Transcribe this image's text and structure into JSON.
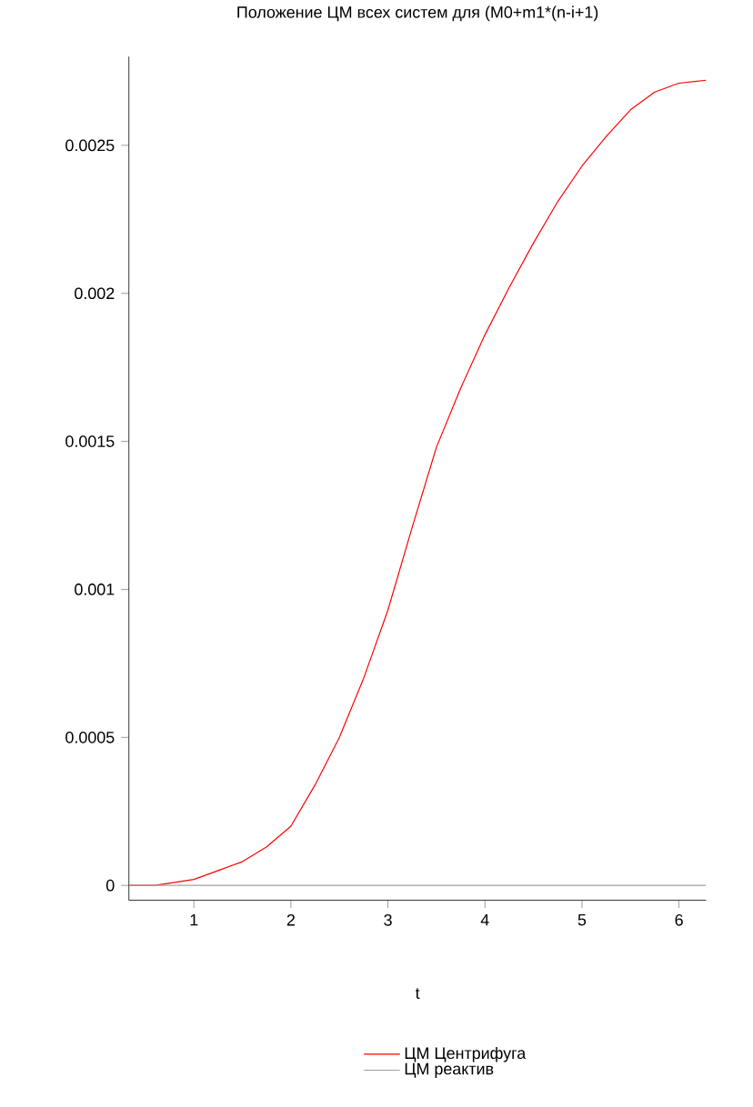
{
  "chart_data": {
    "type": "line",
    "title": "Положение ЦМ всех систем для (M0+m1*(n-i+1)",
    "xlabel": "t",
    "x": [
      0.33,
      0.6,
      1,
      1.25,
      1.5,
      1.75,
      2,
      2.25,
      2.5,
      2.75,
      3,
      3.25,
      3.5,
      3.75,
      4,
      4.25,
      4.5,
      4.75,
      5,
      5.25,
      5.5,
      5.75,
      6,
      6.28
    ],
    "series": [
      {
        "name": "ЦМ Центрифуга",
        "color": "#ff0000",
        "values": [
          0,
          0,
          2e-05,
          5e-05,
          8e-05,
          0.00013,
          0.0002,
          0.00034,
          0.0005,
          0.0007,
          0.00093,
          0.00121,
          0.00148,
          0.00168,
          0.00186,
          0.00202,
          0.00217,
          0.00231,
          0.00243,
          0.00253,
          0.00262,
          0.00268,
          0.00271,
          0.00272
        ]
      },
      {
        "name": "ЦМ реактив",
        "color": "#a0a0a0",
        "values": [
          0,
          0,
          0,
          0,
          0,
          0,
          0,
          0,
          0,
          0,
          0,
          0,
          0,
          0,
          0,
          0,
          0,
          0,
          0,
          0,
          0,
          0,
          0,
          0
        ]
      }
    ],
    "xlim": [
      0.33,
      6.28
    ],
    "ylim": [
      -5e-05,
      0.0028
    ],
    "xticks": [
      1,
      2,
      3,
      4,
      5,
      6
    ],
    "yticks": [
      0,
      0.0005,
      0.001,
      0.0015,
      0.002,
      0.0025
    ],
    "legend": "bottom",
    "grid": false,
    "marker": "none",
    "line_style": "solid"
  }
}
